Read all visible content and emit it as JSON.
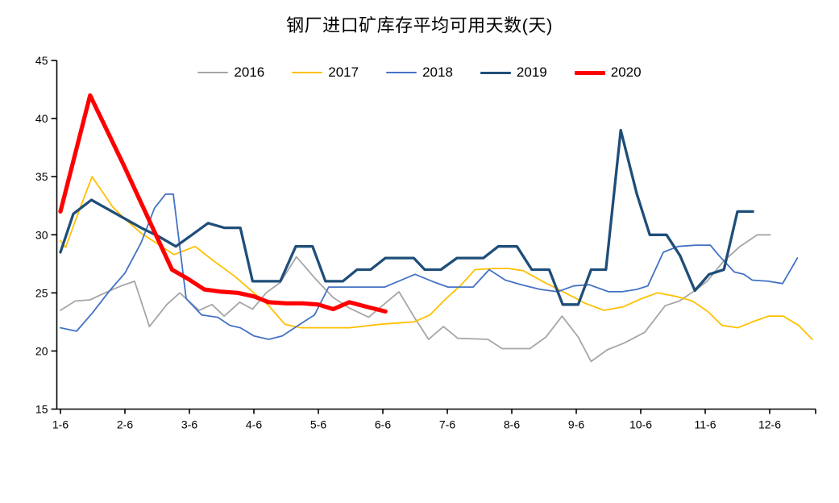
{
  "chart_data": {
    "type": "line",
    "title": "钢厂进口矿库存平均可用天数(天)",
    "x_axis": {
      "unit": "months_since_1-6",
      "tick_labels": [
        "1-6",
        "2-6",
        "3-6",
        "4-6",
        "5-6",
        "6-6",
        "7-6",
        "8-6",
        "9-6",
        "10-6",
        "11-6",
        "12-6"
      ],
      "range": [
        0,
        11.72
      ]
    },
    "y_axis": {
      "min": 15,
      "max": 45,
      "step": 5,
      "ticks": [
        45,
        40,
        35,
        30,
        25,
        20,
        15
      ]
    },
    "grid": false,
    "legend_position": "top-center",
    "background": "#ffffff",
    "axis_color": "#000000",
    "series": [
      {
        "name": "2016",
        "color": "#A6A6A6",
        "width": 1.8,
        "points": [
          [
            0,
            23.5
          ],
          [
            0.23,
            24.3
          ],
          [
            0.46,
            24.4
          ],
          [
            0.73,
            25.1
          ],
          [
            0.94,
            25.6
          ],
          [
            1.15,
            26
          ],
          [
            1.38,
            22.1
          ],
          [
            1.65,
            24
          ],
          [
            1.85,
            25
          ],
          [
            2.15,
            23.5
          ],
          [
            2.35,
            24
          ],
          [
            2.54,
            23
          ],
          [
            2.78,
            24.2
          ],
          [
            2.98,
            23.6
          ],
          [
            3.19,
            25
          ],
          [
            3.41,
            25.9
          ],
          [
            3.66,
            28.1
          ],
          [
            3.94,
            26.3
          ],
          [
            4.23,
            24.6
          ],
          [
            4.48,
            23.7
          ],
          [
            4.78,
            22.9
          ],
          [
            5.25,
            25.1
          ],
          [
            5.5,
            22.8
          ],
          [
            5.71,
            21
          ],
          [
            5.94,
            22.1
          ],
          [
            6.16,
            21.1
          ],
          [
            6.63,
            21
          ],
          [
            6.85,
            20.2
          ],
          [
            7.28,
            20.2
          ],
          [
            7.53,
            21.2
          ],
          [
            7.78,
            23
          ],
          [
            8.03,
            21.2
          ],
          [
            8.23,
            19.1
          ],
          [
            8.48,
            20.1
          ],
          [
            8.75,
            20.7
          ],
          [
            9.06,
            21.6
          ],
          [
            9.38,
            23.9
          ],
          [
            9.6,
            24.3
          ],
          [
            9.84,
            25.2
          ],
          [
            10.03,
            26
          ],
          [
            10.28,
            27.7
          ],
          [
            10.54,
            29
          ],
          [
            10.81,
            30
          ],
          [
            11.01,
            30
          ]
        ]
      },
      {
        "name": "2017",
        "color": "#FFC000",
        "width": 1.8,
        "points": [
          [
            0,
            29.5
          ],
          [
            0.08,
            28.9
          ],
          [
            0.23,
            31.2
          ],
          [
            0.49,
            35
          ],
          [
            0.81,
            32.4
          ],
          [
            1.01,
            31.3
          ],
          [
            1.26,
            30.1
          ],
          [
            1.51,
            29.2
          ],
          [
            1.76,
            28.3
          ],
          [
            2.09,
            29
          ],
          [
            2.34,
            27.9
          ],
          [
            2.71,
            26.4
          ],
          [
            2.98,
            25.1
          ],
          [
            3.23,
            23.9
          ],
          [
            3.48,
            22.3
          ],
          [
            3.73,
            22
          ],
          [
            4.48,
            22
          ],
          [
            4.96,
            22.3
          ],
          [
            5.21,
            22.4
          ],
          [
            5.48,
            22.5
          ],
          [
            5.73,
            23.1
          ],
          [
            5.98,
            24.5
          ],
          [
            6.2,
            25.6
          ],
          [
            6.43,
            27
          ],
          [
            6.7,
            27.1
          ],
          [
            6.95,
            27.1
          ],
          [
            7.18,
            26.9
          ],
          [
            7.51,
            25.9
          ],
          [
            7.83,
            25
          ],
          [
            8.14,
            24.1
          ],
          [
            8.43,
            23.5
          ],
          [
            8.73,
            23.8
          ],
          [
            9.01,
            24.5
          ],
          [
            9.26,
            25
          ],
          [
            9.55,
            24.7
          ],
          [
            9.8,
            24.3
          ],
          [
            10.04,
            23.4
          ],
          [
            10.26,
            22.2
          ],
          [
            10.51,
            22
          ],
          [
            10.73,
            22.5
          ],
          [
            10.98,
            23
          ],
          [
            11.21,
            23
          ],
          [
            11.45,
            22.2
          ],
          [
            11.66,
            21
          ]
        ]
      },
      {
        "name": "2018",
        "color": "#4472C4",
        "width": 1.8,
        "points": [
          [
            0,
            22
          ],
          [
            0.25,
            21.7
          ],
          [
            0.5,
            23.3
          ],
          [
            0.75,
            25.1
          ],
          [
            1.0,
            26.7
          ],
          [
            1.25,
            29.3
          ],
          [
            1.46,
            32.3
          ],
          [
            1.63,
            33.5
          ],
          [
            1.75,
            33.5
          ],
          [
            1.95,
            24.5
          ],
          [
            2.19,
            23.1
          ],
          [
            2.44,
            22.9
          ],
          [
            2.63,
            22.2
          ],
          [
            2.79,
            22
          ],
          [
            3.0,
            21.3
          ],
          [
            3.23,
            21
          ],
          [
            3.44,
            21.3
          ],
          [
            3.66,
            22.1
          ],
          [
            3.94,
            23.1
          ],
          [
            4.16,
            25.5
          ],
          [
            5.03,
            25.5
          ],
          [
            5.5,
            26.6
          ],
          [
            5.81,
            25.9
          ],
          [
            6.01,
            25.5
          ],
          [
            6.4,
            25.5
          ],
          [
            6.65,
            27
          ],
          [
            6.9,
            26.1
          ],
          [
            7.15,
            25.7
          ],
          [
            7.44,
            25.3
          ],
          [
            7.71,
            25.1
          ],
          [
            7.96,
            25.6
          ],
          [
            8.2,
            25.7
          ],
          [
            8.5,
            25.1
          ],
          [
            8.71,
            25.1
          ],
          [
            8.94,
            25.3
          ],
          [
            9.11,
            25.6
          ],
          [
            9.35,
            28.5
          ],
          [
            9.58,
            29
          ],
          [
            9.85,
            29.1
          ],
          [
            10.08,
            29.1
          ],
          [
            10.2,
            28.3
          ],
          [
            10.45,
            26.8
          ],
          [
            10.6,
            26.6
          ],
          [
            10.73,
            26.1
          ],
          [
            10.98,
            26
          ],
          [
            11.2,
            25.8
          ],
          [
            11.43,
            28
          ]
        ]
      },
      {
        "name": "2019",
        "color": "#1F4E79",
        "width": 3.3,
        "points": [
          [
            0,
            28.5
          ],
          [
            0.2,
            31.8
          ],
          [
            0.48,
            33
          ],
          [
            0.96,
            31.5
          ],
          [
            1.25,
            30.6
          ],
          [
            1.51,
            29.9
          ],
          [
            1.79,
            29
          ],
          [
            2.04,
            30
          ],
          [
            2.29,
            31
          ],
          [
            2.54,
            30.6
          ],
          [
            2.79,
            30.6
          ],
          [
            2.98,
            26
          ],
          [
            3.41,
            26
          ],
          [
            3.65,
            29
          ],
          [
            3.91,
            29
          ],
          [
            4.11,
            26
          ],
          [
            4.38,
            26
          ],
          [
            4.6,
            27
          ],
          [
            4.81,
            27
          ],
          [
            5.04,
            28
          ],
          [
            5.48,
            28
          ],
          [
            5.65,
            27
          ],
          [
            5.9,
            27
          ],
          [
            6.15,
            28
          ],
          [
            6.56,
            28
          ],
          [
            6.79,
            29
          ],
          [
            7.08,
            29
          ],
          [
            7.31,
            27
          ],
          [
            7.58,
            27
          ],
          [
            7.79,
            24
          ],
          [
            8.03,
            24
          ],
          [
            8.23,
            27
          ],
          [
            8.46,
            27
          ],
          [
            8.69,
            39
          ],
          [
            8.94,
            33.5
          ],
          [
            9.14,
            30
          ],
          [
            9.4,
            30
          ],
          [
            9.61,
            28.2
          ],
          [
            9.84,
            25.2
          ],
          [
            10.06,
            26.6
          ],
          [
            10.29,
            27
          ],
          [
            10.5,
            32
          ],
          [
            10.74,
            32
          ]
        ]
      },
      {
        "name": "2020",
        "color": "#FF0000",
        "width": 5.2,
        "points": [
          [
            0,
            32
          ],
          [
            0.46,
            42
          ],
          [
            0.98,
            36
          ],
          [
            1.73,
            27
          ],
          [
            1.98,
            26.2
          ],
          [
            2.23,
            25.3
          ],
          [
            2.5,
            25.1
          ],
          [
            2.75,
            25
          ],
          [
            3.0,
            24.7
          ],
          [
            3.23,
            24.2
          ],
          [
            3.5,
            24.1
          ],
          [
            3.75,
            24.1
          ],
          [
            4.0,
            24
          ],
          [
            4.23,
            23.6
          ],
          [
            4.48,
            24.2
          ],
          [
            4.75,
            23.8
          ],
          [
            5.04,
            23.4
          ]
        ]
      }
    ]
  }
}
